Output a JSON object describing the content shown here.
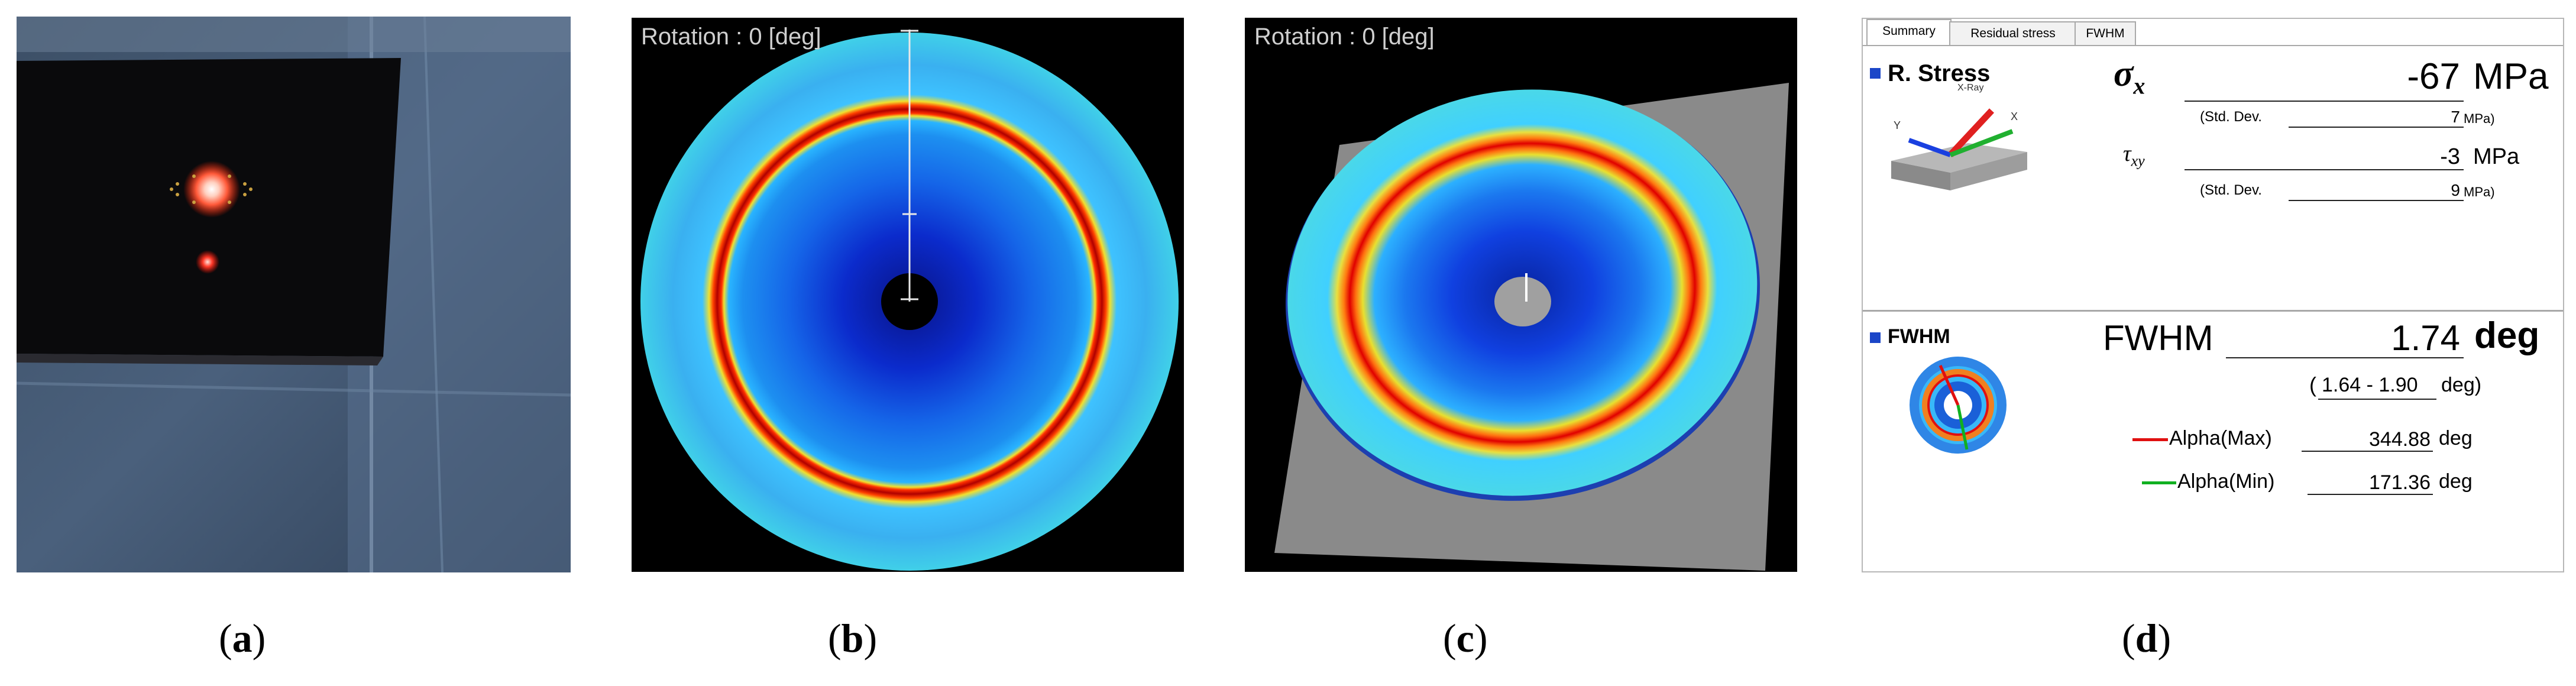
{
  "panels": {
    "b": {
      "rotation_label": "Rotation : 0 [deg]"
    },
    "c": {
      "rotation_label": "Rotation : 0 [deg]"
    }
  },
  "software": {
    "tabs": [
      {
        "label": "Summary",
        "active": true
      },
      {
        "label": "Residual stress",
        "active": false
      },
      {
        "label": "FWHM",
        "active": false
      }
    ],
    "stress": {
      "section_title": "R. Stress",
      "icon_labels": {
        "xray": "X-Ray",
        "x_axis": "X",
        "y_axis": "Y"
      },
      "sigma_symbol": "σ",
      "sigma_subscript": "x",
      "sigma_value": "-67",
      "sigma_unit": "MPa",
      "sigma_std_label": "(Std. Dev.",
      "sigma_std_value": "7",
      "sigma_std_unit": "MPa)",
      "tau_symbol": "τ",
      "tau_subscript": "xy",
      "tau_value": "-3",
      "tau_unit": "MPa",
      "tau_std_label": "(Std. Dev.",
      "tau_std_value": "9",
      "tau_std_unit": "MPa)"
    },
    "fwhm": {
      "section_title": "FWHM",
      "label": "FWHM",
      "value": "1.74",
      "unit": "deg",
      "range_open": "(",
      "range_value": "1.64 - 1.90",
      "range_unit": "deg)",
      "alpha_max_label": "Alpha(Max)",
      "alpha_max_value": "344.88",
      "alpha_max_unit": "deg",
      "alpha_min_label": "Alpha(Min)",
      "alpha_min_value": "171.36",
      "alpha_min_unit": "deg"
    },
    "colors": {
      "accent_blue": "#1a3fe0",
      "alpha_max_line": "#e01010",
      "alpha_min_line": "#10b020"
    }
  },
  "captions": {
    "a": {
      "open": "(",
      "letter": "a",
      "close": ")"
    },
    "b": {
      "open": "(",
      "letter": "b",
      "close": ")"
    },
    "c": {
      "open": "(",
      "letter": "c",
      "close": ")"
    },
    "d": {
      "open": "(",
      "letter": "d",
      "close": ")"
    }
  }
}
